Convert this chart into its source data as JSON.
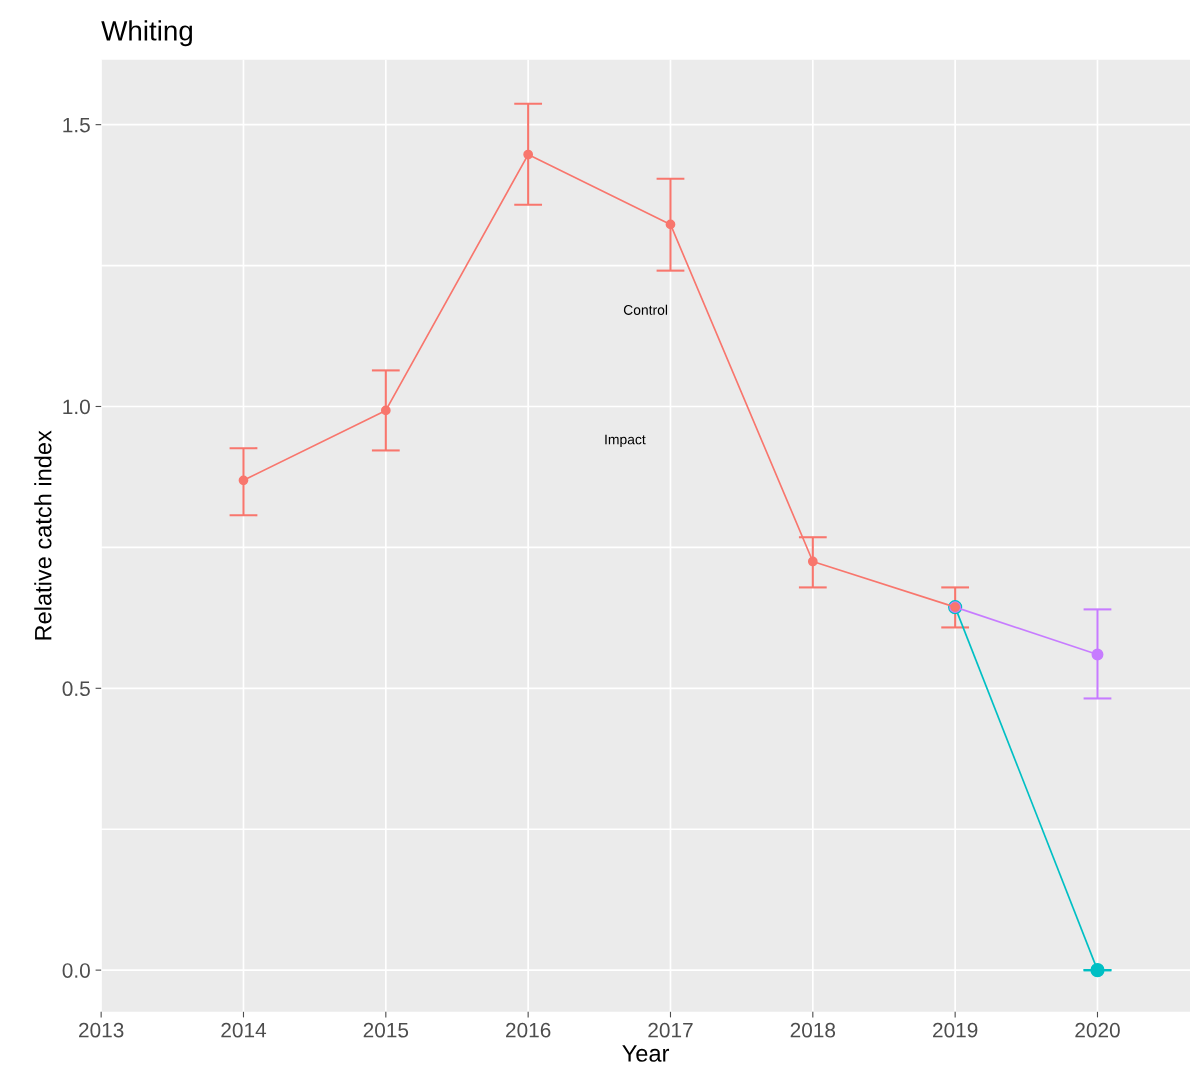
{
  "chart_data": {
    "type": "line",
    "title": "Whiting",
    "xlabel": "Year",
    "ylabel": "Relative catch index",
    "xlim": [
      2013,
      2020.65
    ],
    "xticks": [
      2013,
      2014,
      2015,
      2016,
      2017,
      2018,
      2019,
      2020
    ],
    "ylim": [
      -0.074,
      1.615
    ],
    "yticks": [
      {
        "value": 0,
        "label": "0.0"
      },
      {
        "value": 0.25,
        "label": null
      },
      {
        "value": 0.5,
        "label": "0.5"
      },
      {
        "value": 0.75,
        "label": null
      },
      {
        "value": 1,
        "label": "1.0"
      },
      {
        "value": 1.25,
        "label": null
      },
      {
        "value": 1.5,
        "label": "1.5"
      }
    ],
    "grid": true,
    "marker": "circle",
    "line_style": "solid",
    "series": [
      {
        "color": "#f8766d",
        "x": [
          2014,
          2015,
          2016,
          2017,
          2018,
          2019
        ],
        "values": [
          0.869,
          0.993,
          1.447,
          1.323,
          0.725,
          0.644
        ],
        "errors": [
          [
            0.807,
            0.926
          ],
          [
            0.922,
            1.064
          ],
          [
            1.358,
            1.537
          ],
          [
            1.241,
            1.404
          ],
          [
            0.679,
            0.768
          ],
          [
            0.608,
            0.679
          ]
        ]
      },
      {
        "color": "#c77cff",
        "x": [
          2019,
          2020
        ],
        "values": [
          0.644,
          0.56
        ],
        "errors": [
          null,
          [
            0.482,
            0.64
          ]
        ]
      },
      {
        "color": "#00bfc4",
        "x": [
          2019,
          2020
        ],
        "values": [
          0.644,
          0.0
        ],
        "errors": [
          null,
          [
            0.0,
            0.0
          ]
        ]
      }
    ],
    "annotations": [
      "Control",
      "Impact"
    ]
  }
}
